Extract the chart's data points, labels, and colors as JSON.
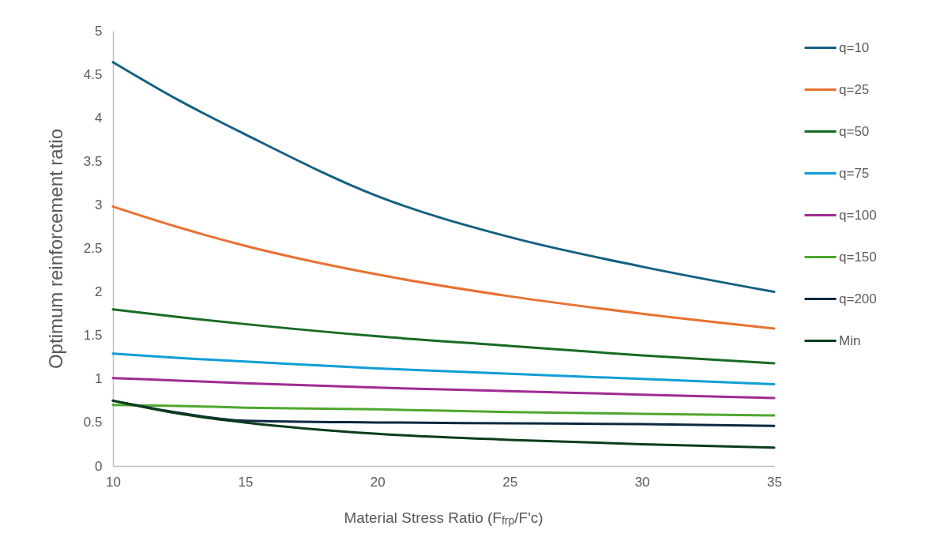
{
  "chart_data": {
    "type": "line",
    "xlabel": "Material Stress Ratio (F$_{frp}$/F'c)",
    "ylabel": "Optimum reinforcement ratio",
    "xlim": [
      10,
      35
    ],
    "xticks": [
      10,
      15,
      20,
      25,
      30,
      35
    ],
    "ylim": [
      0,
      5
    ],
    "yticks": [
      0,
      0.5,
      1,
      1.5,
      2,
      2.5,
      3,
      3.5,
      4,
      4.5,
      5
    ],
    "grid": false,
    "legend": "right",
    "line_style": "solid",
    "marker": "none",
    "x": [
      10,
      12.5,
      15,
      20,
      25,
      30,
      35
    ],
    "series": [
      {
        "name": "q=10",
        "color": "#156082",
        "values": [
          4.64,
          4.2,
          3.81,
          3.1,
          2.63,
          2.29,
          2.0
        ]
      },
      {
        "name": "q=25",
        "color": "#e97132",
        "values": [
          2.98,
          2.74,
          2.53,
          2.2,
          1.95,
          1.75,
          1.58
        ]
      },
      {
        "name": "q=50",
        "color": "#196b24",
        "values": [
          1.8,
          1.71,
          1.63,
          1.49,
          1.38,
          1.27,
          1.18
        ]
      },
      {
        "name": "q=75",
        "color": "#0f9ed5",
        "values": [
          1.29,
          1.24,
          1.2,
          1.12,
          1.06,
          1.0,
          0.94
        ]
      },
      {
        "name": "q=100",
        "color": "#a02b93",
        "values": [
          1.01,
          0.98,
          0.95,
          0.9,
          0.86,
          0.82,
          0.78
        ]
      },
      {
        "name": "q=150",
        "color": "#4ea72e",
        "values": [
          0.7,
          0.69,
          0.67,
          0.65,
          0.62,
          0.6,
          0.58
        ]
      },
      {
        "name": "q=200",
        "color": "#0e2841",
        "values": [
          0.75,
          0.61,
          0.52,
          0.5,
          0.49,
          0.48,
          0.46
        ]
      },
      {
        "name": "Min",
        "color": "#0b3d1a",
        "values": [
          0.75,
          0.6,
          0.5,
          0.37,
          0.3,
          0.25,
          0.21
        ]
      }
    ]
  }
}
